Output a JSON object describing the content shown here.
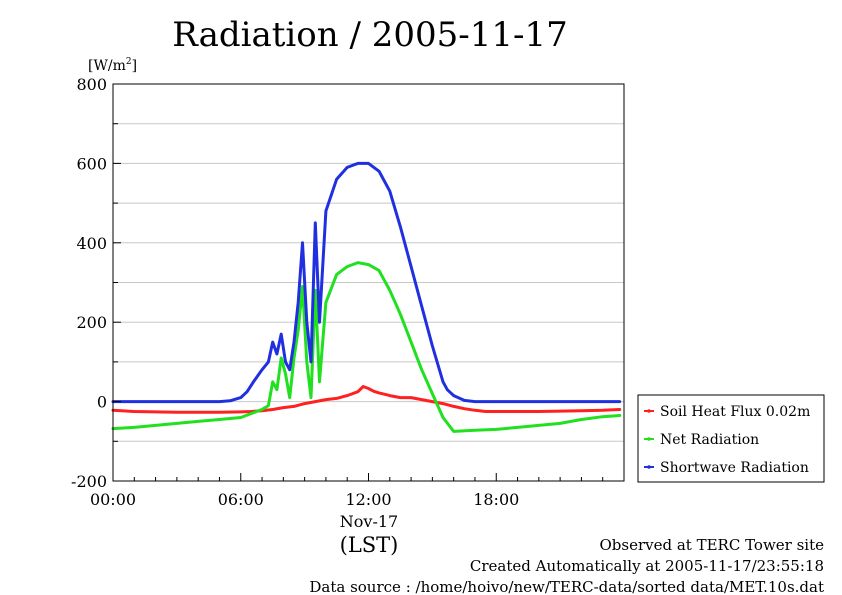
{
  "chart_data": {
    "type": "line",
    "title": "Radiation / 2005-11-17",
    "ylabel": "[W/m",
    "ylabel_superscript": "2",
    "ylabel_close": "]",
    "ylim": [
      -200,
      800
    ],
    "yticks": [
      -200,
      0,
      200,
      400,
      600,
      800
    ],
    "ytick_labels": [
      "-200",
      "0",
      "200",
      "400",
      "600",
      "800"
    ],
    "xlim": [
      0,
      24
    ],
    "xticks": [
      0,
      6,
      12,
      18
    ],
    "xtick_labels": [
      "00:00",
      "06:00",
      "12:00",
      "18:00"
    ],
    "date_label": "Nov-17",
    "xlabel": "(LST)",
    "grid": true,
    "legend_position": "right",
    "series": [
      {
        "name": "Soil Heat Flux 0.02m",
        "color": "#ff2020",
        "x": [
          0,
          1,
          2,
          3,
          4,
          5,
          6,
          6.5,
          7,
          7.5,
          8,
          8.5,
          9,
          9.5,
          10,
          10.5,
          11,
          11.5,
          11.75,
          12,
          12.25,
          12.5,
          13,
          13.5,
          14,
          14.5,
          15,
          15.5,
          16,
          16.5,
          17,
          17.5,
          18,
          19,
          20,
          21,
          22,
          23,
          23.8
        ],
        "y": [
          -22,
          -25,
          -26,
          -27,
          -27,
          -27,
          -26,
          -25,
          -23,
          -20,
          -15,
          -12,
          -5,
          0,
          5,
          8,
          15,
          25,
          38,
          33,
          26,
          22,
          15,
          10,
          10,
          5,
          0,
          -5,
          -12,
          -18,
          -22,
          -25,
          -25,
          -25,
          -25,
          -24,
          -23,
          -22,
          -20
        ]
      },
      {
        "name": "Net Radiation",
        "color": "#20e020",
        "x": [
          0,
          1,
          2,
          3,
          4,
          5,
          6,
          6.5,
          7,
          7.3,
          7.5,
          7.7,
          7.9,
          8.1,
          8.3,
          8.5,
          8.7,
          8.9,
          9.1,
          9.3,
          9.5,
          9.7,
          10,
          10.5,
          11,
          11.5,
          12,
          12.5,
          13,
          13.5,
          14,
          14.5,
          15,
          15.5,
          16,
          17,
          18,
          19,
          20,
          21,
          22,
          23,
          23.8
        ],
        "y": [
          -68,
          -65,
          -60,
          -55,
          -50,
          -45,
          -40,
          -30,
          -20,
          -10,
          50,
          30,
          110,
          70,
          10,
          110,
          180,
          290,
          100,
          10,
          280,
          50,
          250,
          320,
          340,
          350,
          345,
          330,
          280,
          220,
          150,
          80,
          20,
          -40,
          -75,
          -72,
          -70,
          -65,
          -60,
          -55,
          -45,
          -38,
          -35
        ]
      },
      {
        "name": "Shortwave Radiation",
        "color": "#2030e0",
        "x": [
          0,
          1,
          2,
          3,
          4,
          5,
          5.5,
          6,
          6.3,
          6.6,
          7,
          7.3,
          7.5,
          7.7,
          7.9,
          8.1,
          8.3,
          8.5,
          8.7,
          8.9,
          9.1,
          9.3,
          9.5,
          9.7,
          10,
          10.5,
          11,
          11.5,
          12,
          12.5,
          13,
          13.5,
          14,
          14.5,
          15,
          15.5,
          15.7,
          16,
          16.5,
          17,
          18,
          19,
          20,
          21,
          22,
          23,
          23.8
        ],
        "y": [
          0,
          0,
          0,
          0,
          0,
          0,
          2,
          10,
          25,
          50,
          80,
          100,
          150,
          120,
          170,
          100,
          80,
          150,
          250,
          400,
          200,
          100,
          450,
          200,
          480,
          560,
          590,
          600,
          600,
          580,
          530,
          440,
          340,
          240,
          140,
          50,
          30,
          15,
          3,
          0,
          0,
          0,
          0,
          0,
          0,
          0,
          0
        ]
      }
    ]
  },
  "footer": {
    "line1": "Observed at TERC Tower site",
    "line2": "Created Automatically at 2005-11-17/23:55:18",
    "line3": "Data source : /home/hoivo/new/TERC-data/sorted  data/MET.10s.dat"
  }
}
